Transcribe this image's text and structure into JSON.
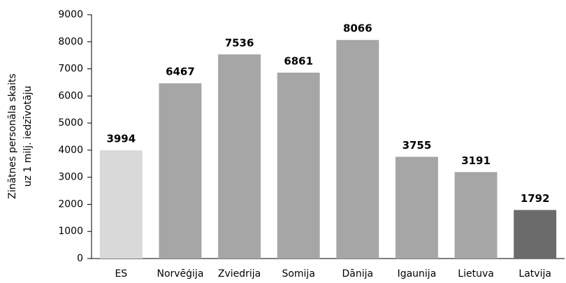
{
  "chart_data": {
    "type": "bar",
    "ylabel": [
      "Zinātnes personāla skaits",
      "uz 1 milj. iedzīvotāju"
    ],
    "categories": [
      "ES",
      "Norvēģija",
      "Zviedrija",
      "Somija",
      "Dānija",
      "Igaunija",
      "Lietuva",
      "Latvija"
    ],
    "values": [
      3994,
      6467,
      7536,
      6861,
      8066,
      3755,
      3191,
      1792
    ],
    "colors": [
      "#d9d9d9",
      "#a6a6a6",
      "#a6a6a6",
      "#a6a6a6",
      "#a6a6a6",
      "#a6a6a6",
      "#a6a6a6",
      "#6b6b6b"
    ],
    "ylim": [
      0,
      9000
    ],
    "yticks": [
      0,
      1000,
      2000,
      3000,
      4000,
      5000,
      6000,
      7000,
      8000,
      9000
    ],
    "grid": false
  }
}
